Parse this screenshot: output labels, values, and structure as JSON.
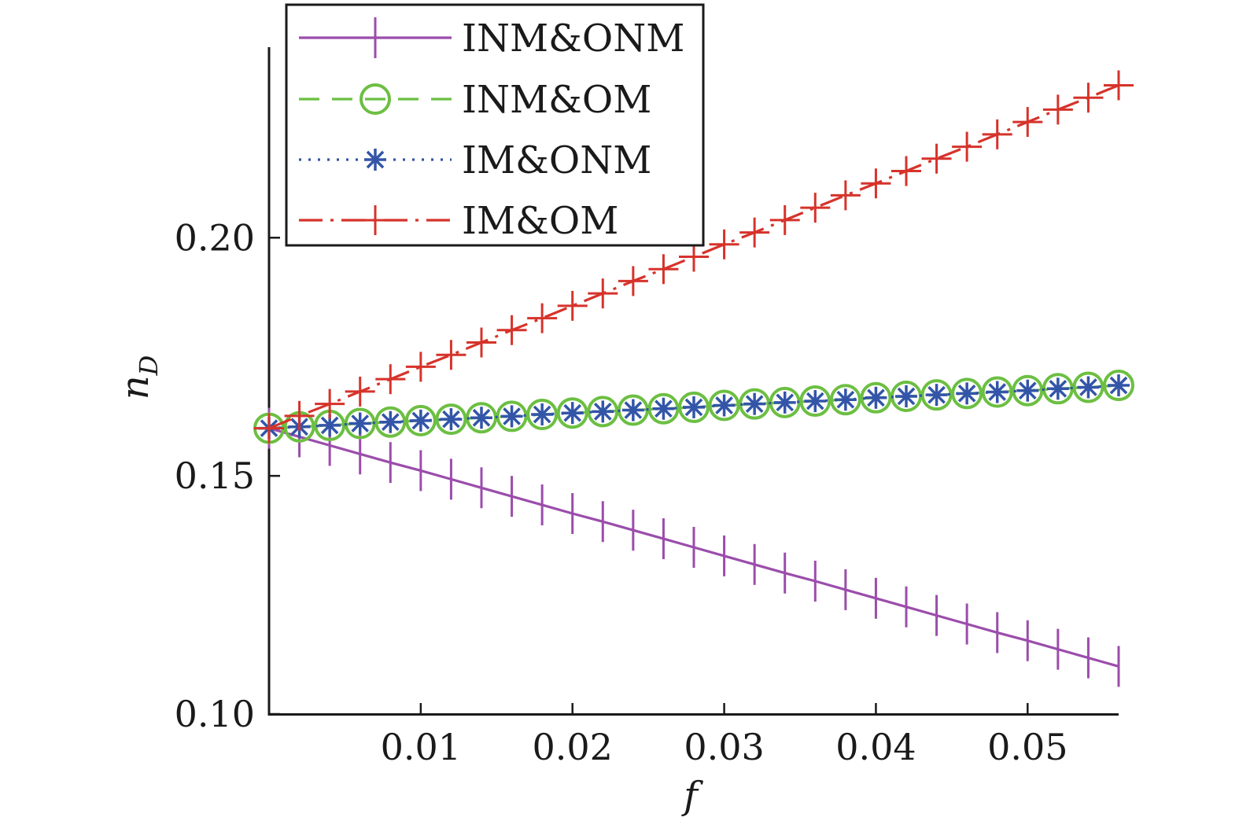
{
  "chart_data": {
    "type": "line",
    "title": "",
    "xlabel": "f",
    "ylabel": "n",
    "ylabel_subscript": "D",
    "xlim": [
      0,
      0.056
    ],
    "ylim": [
      0.1,
      0.24
    ],
    "xticks": [
      0.01,
      0.02,
      0.03,
      0.04,
      0.05
    ],
    "xtick_labels": [
      "0.01",
      "0.02",
      "0.03",
      "0.04",
      "0.05"
    ],
    "yticks": [
      0.1,
      0.15,
      0.2
    ],
    "ytick_labels": [
      "0.10",
      "0.15",
      "0.20"
    ],
    "grid": false,
    "legend_position": "top-left",
    "x": [
      0,
      0.002,
      0.004,
      0.006,
      0.008,
      0.01,
      0.012,
      0.014,
      0.016,
      0.018,
      0.02,
      0.022,
      0.024,
      0.026,
      0.028,
      0.03,
      0.032,
      0.034,
      0.036,
      0.038,
      0.04,
      0.042,
      0.044,
      0.046,
      0.048,
      0.05,
      0.052,
      0.054,
      0.056
    ],
    "series": [
      {
        "name": "INM&ONM",
        "color": "#9b4dab",
        "line": "solid",
        "marker": "vline",
        "values": [
          0.16,
          0.1582,
          0.1564,
          0.1546,
          0.1528,
          0.1511,
          0.1493,
          0.1475,
          0.1457,
          0.1439,
          0.1421,
          0.1404,
          0.1386,
          0.1368,
          0.135,
          0.1332,
          0.1314,
          0.1296,
          0.1279,
          0.1261,
          0.1243,
          0.1225,
          0.1207,
          0.1189,
          0.1171,
          0.1154,
          0.1136,
          0.1118,
          0.11
        ]
      },
      {
        "name": "INM&OM",
        "color": "#6cbf42",
        "line": "dashed",
        "marker": "circle",
        "values": [
          0.16,
          0.1603,
          0.1606,
          0.161,
          0.1613,
          0.1616,
          0.1619,
          0.1622,
          0.1625,
          0.1629,
          0.1632,
          0.1635,
          0.1638,
          0.1641,
          0.1644,
          0.1648,
          0.1651,
          0.1654,
          0.1657,
          0.166,
          0.1664,
          0.1667,
          0.167,
          0.1673,
          0.1676,
          0.1679,
          0.1683,
          0.1686,
          0.169
        ]
      },
      {
        "name": "IM&ONM",
        "color": "#3355a8",
        "line": "dotted",
        "marker": "asterisk",
        "values": [
          0.16,
          0.1603,
          0.1606,
          0.161,
          0.1613,
          0.1616,
          0.1619,
          0.1622,
          0.1625,
          0.1629,
          0.1632,
          0.1635,
          0.1638,
          0.1641,
          0.1644,
          0.1648,
          0.1651,
          0.1654,
          0.1657,
          0.166,
          0.1664,
          0.1667,
          0.167,
          0.1673,
          0.1676,
          0.1679,
          0.1683,
          0.1686,
          0.169
        ]
      },
      {
        "name": "IM&OM",
        "color": "#d6332b",
        "line": "dashdot",
        "marker": "plus",
        "values": [
          0.16,
          0.1626,
          0.1651,
          0.1677,
          0.1703,
          0.1729,
          0.1754,
          0.178,
          0.1806,
          0.1831,
          0.1857,
          0.1883,
          0.1909,
          0.1934,
          0.196,
          0.1986,
          0.2011,
          0.2037,
          0.2063,
          0.2089,
          0.2114,
          0.214,
          0.2166,
          0.2191,
          0.2217,
          0.2243,
          0.2269,
          0.2294,
          0.232
        ]
      }
    ]
  }
}
